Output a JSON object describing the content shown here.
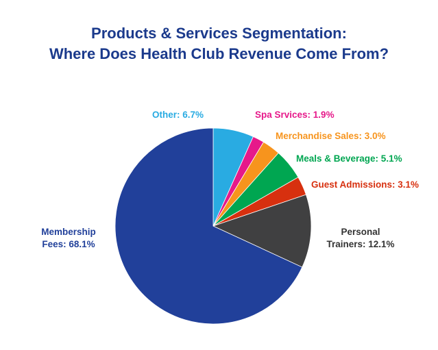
{
  "chart_data": {
    "type": "pie",
    "title_lines": [
      "Products & Services Segmentation:",
      "Where Does Health Club Revenue Come From?"
    ],
    "slices": [
      {
        "lines": [
          "Other: 6.7%"
        ],
        "value": 6.7,
        "color": "#29abe2"
      },
      {
        "lines": [
          "Spa Srvices: 1.9%"
        ],
        "value": 1.9,
        "color": "#e6198a"
      },
      {
        "lines": [
          "Merchandise Sales: 3.0%"
        ],
        "value": 3.0,
        "color": "#f7941d"
      },
      {
        "lines": [
          "Meals & Beverage: 5.1%"
        ],
        "value": 5.1,
        "color": "#00a651"
      },
      {
        "lines": [
          "Guest Admissions: 3.1%"
        ],
        "value": 3.1,
        "color": "#d7300f"
      },
      {
        "lines": [
          "Personal",
          "Trainers: 12.1%"
        ],
        "value": 12.1,
        "color": "#404041",
        "label_color": "#333333"
      },
      {
        "lines": [
          "Membership",
          "Fees: 68.1%"
        ],
        "value": 68.1,
        "color": "#21409a"
      }
    ]
  }
}
